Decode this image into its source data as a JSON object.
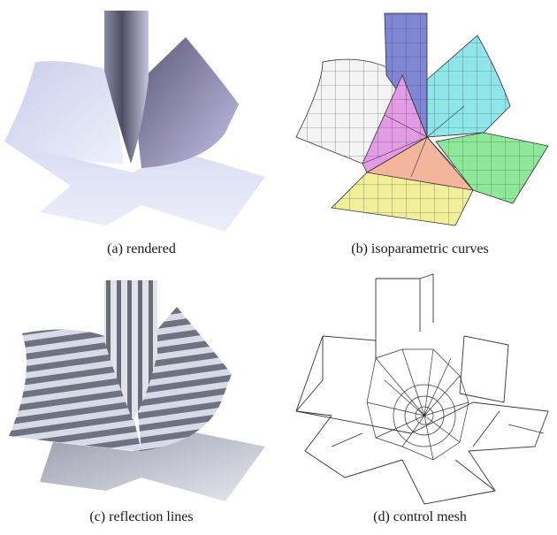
{
  "figure": {
    "panels": [
      {
        "id": "a",
        "caption": "(a) rendered",
        "style": "shaded surface"
      },
      {
        "id": "b",
        "caption": "(b) isoparametric curves",
        "style": "colored patches with grid lines"
      },
      {
        "id": "c",
        "caption": "(c) reflection lines",
        "style": "striped surface"
      },
      {
        "id": "d",
        "caption": "(d) control mesh",
        "style": "wireframe"
      }
    ],
    "colors": {
      "shade_light": "#e3e5f8",
      "shade_mid": "#b9bfe2",
      "shade_dark": "#5e5c78",
      "patch_blue": "#7f86d6",
      "patch_cyan": "#8fe6ea",
      "patch_green": "#8ee89a",
      "patch_yellow": "#f1ef9a",
      "patch_salmon": "#f3b59c",
      "patch_magenta": "#e49be6",
      "patch_white": "#f4f4f4",
      "stripe_dark": "#6f7282",
      "stripe_light": "#d8dae6",
      "line": "#333333"
    }
  }
}
